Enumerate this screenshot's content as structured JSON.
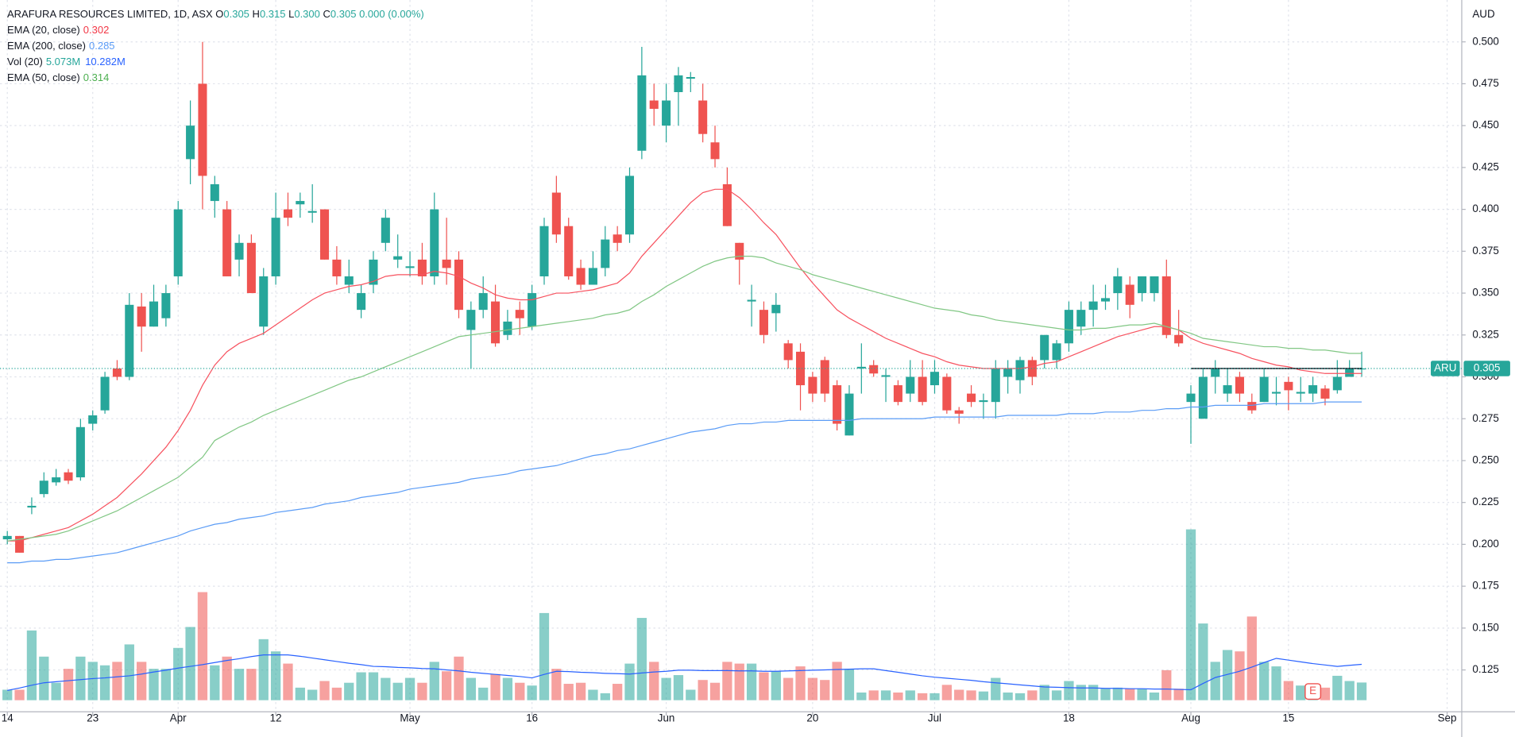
{
  "chart_data": {
    "type": "candlestick",
    "header": {
      "symbol": "ARAFURA RESOURCES LIMITED, 1D, ASX",
      "ohlc": [
        {
          "label": "O",
          "value": "0.305"
        },
        {
          "label": "H",
          "value": "0.315"
        },
        {
          "label": "L",
          "value": "0.300"
        },
        {
          "label": "C",
          "value": "0.305"
        }
      ],
      "change": "0.000 (0.00%)"
    },
    "currency": "AUD",
    "ticker": "ARU",
    "last_price": {
      "value": 0.305,
      "label": "0.305"
    },
    "up_color": "#26a69a",
    "down_color": "#ef5350",
    "xlim": [
      -0.6,
      119.2
    ],
    "xticks": [
      {
        "value": 0,
        "label": "14"
      },
      {
        "value": 7,
        "label": "23"
      },
      {
        "value": 14,
        "label": "Apr"
      },
      {
        "value": 22,
        "label": "12"
      },
      {
        "value": 33,
        "label": "May"
      },
      {
        "value": 43,
        "label": "16"
      },
      {
        "value": 54,
        "label": "Jun"
      },
      {
        "value": 66,
        "label": "20"
      },
      {
        "value": 76,
        "label": "Jul"
      },
      {
        "value": 87,
        "label": "18"
      },
      {
        "value": 97,
        "label": "Aug"
      },
      {
        "value": 105,
        "label": "15"
      },
      {
        "value": 118,
        "label": "Sep"
      }
    ],
    "ylim": [
      0.1,
      0.525
    ],
    "yticks": [
      {
        "value": 0.125,
        "label": "0.125"
      },
      {
        "value": 0.15,
        "label": "0.150"
      },
      {
        "value": 0.175,
        "label": "0.175"
      },
      {
        "value": 0.2,
        "label": "0.200"
      },
      {
        "value": 0.225,
        "label": "0.225"
      },
      {
        "value": 0.25,
        "label": "0.250"
      },
      {
        "value": 0.275,
        "label": "0.275"
      },
      {
        "value": 0.3,
        "label": "0.300"
      },
      {
        "value": 0.325,
        "label": "0.325"
      },
      {
        "value": 0.35,
        "label": "0.350"
      },
      {
        "value": 0.375,
        "label": "0.375"
      },
      {
        "value": 0.4,
        "label": "0.400"
      },
      {
        "value": 0.425,
        "label": "0.425"
      },
      {
        "value": 0.45,
        "label": "0.450"
      },
      {
        "value": 0.475,
        "label": "0.475"
      },
      {
        "value": 0.5,
        "label": "0.500"
      }
    ],
    "grid": true,
    "open": [
      0.203,
      0.205,
      0.222,
      0.23,
      0.237,
      0.243,
      0.24,
      0.272,
      0.28,
      0.305,
      0.3,
      0.342,
      0.33,
      0.335,
      0.36,
      0.43,
      0.475,
      0.405,
      0.4,
      0.37,
      0.38,
      0.33,
      0.36,
      0.4,
      0.403,
      0.398,
      0.4,
      0.37,
      0.355,
      0.34,
      0.355,
      0.38,
      0.37,
      0.365,
      0.37,
      0.36,
      0.37,
      0.37,
      0.328,
      0.34,
      0.345,
      0.325,
      0.34,
      0.33,
      0.36,
      0.41,
      0.39,
      0.365,
      0.355,
      0.365,
      0.385,
      0.385,
      0.435,
      0.465,
      0.45,
      0.47,
      0.478,
      0.465,
      0.44,
      0.415,
      0.38,
      0.345,
      0.34,
      0.338,
      0.32,
      0.315,
      0.3,
      0.31,
      0.295,
      0.265,
      0.305,
      0.307,
      0.3,
      0.295,
      0.29,
      0.3,
      0.295,
      0.3,
      0.28,
      0.29,
      0.285,
      0.285,
      0.3,
      0.298,
      0.31,
      0.31,
      0.31,
      0.32,
      0.33,
      0.34,
      0.345,
      0.35,
      0.355,
      0.35,
      0.35,
      0.36,
      0.325,
      0.285,
      0.275,
      0.3,
      0.29,
      0.3,
      0.285,
      0.285,
      0.29,
      0.297,
      0.29,
      0.29,
      0.293,
      0.292,
      0.3,
      0.305
    ],
    "high": [
      0.208,
      0.205,
      0.228,
      0.243,
      0.245,
      0.245,
      0.275,
      0.28,
      0.303,
      0.31,
      0.35,
      0.35,
      0.355,
      0.355,
      0.405,
      0.465,
      0.5,
      0.42,
      0.405,
      0.385,
      0.385,
      0.365,
      0.41,
      0.41,
      0.41,
      0.415,
      0.4,
      0.378,
      0.37,
      0.355,
      0.375,
      0.4,
      0.385,
      0.375,
      0.38,
      0.41,
      0.395,
      0.375,
      0.345,
      0.36,
      0.355,
      0.34,
      0.345,
      0.355,
      0.395,
      0.42,
      0.395,
      0.37,
      0.375,
      0.39,
      0.39,
      0.425,
      0.497,
      0.475,
      0.475,
      0.485,
      0.482,
      0.475,
      0.45,
      0.425,
      0.38,
      0.355,
      0.345,
      0.35,
      0.322,
      0.32,
      0.303,
      0.312,
      0.298,
      0.295,
      0.32,
      0.31,
      0.305,
      0.298,
      0.31,
      0.31,
      0.31,
      0.302,
      0.282,
      0.295,
      0.29,
      0.31,
      0.31,
      0.312,
      0.312,
      0.325,
      0.322,
      0.345,
      0.345,
      0.355,
      0.355,
      0.365,
      0.36,
      0.36,
      0.36,
      0.37,
      0.34,
      0.295,
      0.305,
      0.31,
      0.305,
      0.303,
      0.29,
      0.305,
      0.3,
      0.3,
      0.3,
      0.3,
      0.295,
      0.31,
      0.31,
      0.315
    ],
    "low": [
      0.2,
      0.195,
      0.218,
      0.228,
      0.235,
      0.236,
      0.238,
      0.268,
      0.278,
      0.298,
      0.298,
      0.315,
      0.33,
      0.33,
      0.355,
      0.415,
      0.4,
      0.395,
      0.36,
      0.36,
      0.35,
      0.325,
      0.355,
      0.39,
      0.395,
      0.392,
      0.37,
      0.355,
      0.35,
      0.335,
      0.35,
      0.375,
      0.365,
      0.36,
      0.355,
      0.355,
      0.355,
      0.335,
      0.305,
      0.335,
      0.318,
      0.322,
      0.325,
      0.328,
      0.355,
      0.38,
      0.358,
      0.352,
      0.355,
      0.36,
      0.375,
      0.38,
      0.43,
      0.45,
      0.44,
      0.45,
      0.47,
      0.44,
      0.425,
      0.39,
      0.355,
      0.33,
      0.32,
      0.327,
      0.305,
      0.28,
      0.285,
      0.285,
      0.268,
      0.265,
      0.29,
      0.3,
      0.285,
      0.283,
      0.285,
      0.283,
      0.29,
      0.278,
      0.272,
      0.282,
      0.275,
      0.275,
      0.29,
      0.29,
      0.295,
      0.305,
      0.305,
      0.315,
      0.325,
      0.33,
      0.34,
      0.34,
      0.335,
      0.345,
      0.345,
      0.323,
      0.318,
      0.26,
      0.275,
      0.29,
      0.285,
      0.285,
      0.278,
      0.285,
      0.283,
      0.28,
      0.285,
      0.285,
      0.283,
      0.29,
      0.3,
      0.3
    ],
    "close": [
      0.205,
      0.195,
      0.223,
      0.238,
      0.24,
      0.238,
      0.27,
      0.277,
      0.3,
      0.3,
      0.343,
      0.33,
      0.345,
      0.35,
      0.4,
      0.45,
      0.42,
      0.415,
      0.36,
      0.38,
      0.35,
      0.36,
      0.395,
      0.395,
      0.405,
      0.399,
      0.37,
      0.36,
      0.36,
      0.35,
      0.37,
      0.395,
      0.372,
      0.366,
      0.36,
      0.4,
      0.365,
      0.34,
      0.34,
      0.35,
      0.32,
      0.333,
      0.335,
      0.35,
      0.39,
      0.385,
      0.36,
      0.355,
      0.365,
      0.382,
      0.38,
      0.42,
      0.48,
      0.46,
      0.465,
      0.48,
      0.479,
      0.445,
      0.43,
      0.39,
      0.37,
      0.346,
      0.325,
      0.343,
      0.31,
      0.295,
      0.29,
      0.29,
      0.272,
      0.29,
      0.306,
      0.302,
      0.301,
      0.285,
      0.3,
      0.285,
      0.303,
      0.28,
      0.278,
      0.285,
      0.286,
      0.305,
      0.305,
      0.31,
      0.3,
      0.325,
      0.32,
      0.34,
      0.34,
      0.345,
      0.347,
      0.36,
      0.343,
      0.36,
      0.36,
      0.325,
      0.32,
      0.29,
      0.3,
      0.305,
      0.295,
      0.29,
      0.28,
      0.3,
      0.291,
      0.292,
      0.291,
      0.295,
      0.287,
      0.3,
      0.305,
      0.305
    ],
    "series": [
      {
        "name": "EMA (20, close)",
        "label": "0.302",
        "color": "#f7525f",
        "values": [
          0.202,
          0.202,
          0.204,
          0.206,
          0.208,
          0.21,
          0.214,
          0.218,
          0.223,
          0.228,
          0.235,
          0.242,
          0.25,
          0.258,
          0.268,
          0.28,
          0.295,
          0.307,
          0.315,
          0.32,
          0.323,
          0.326,
          0.331,
          0.336,
          0.341,
          0.346,
          0.35,
          0.352,
          0.354,
          0.355,
          0.357,
          0.36,
          0.361,
          0.361,
          0.361,
          0.363,
          0.362,
          0.36,
          0.356,
          0.353,
          0.349,
          0.347,
          0.346,
          0.346,
          0.348,
          0.35,
          0.35,
          0.351,
          0.352,
          0.354,
          0.356,
          0.362,
          0.372,
          0.38,
          0.388,
          0.396,
          0.404,
          0.41,
          0.412,
          0.412,
          0.407,
          0.4,
          0.392,
          0.385,
          0.375,
          0.365,
          0.356,
          0.348,
          0.34,
          0.335,
          0.331,
          0.327,
          0.323,
          0.32,
          0.317,
          0.314,
          0.312,
          0.309,
          0.307,
          0.306,
          0.305,
          0.305,
          0.305,
          0.305,
          0.306,
          0.308,
          0.309,
          0.312,
          0.315,
          0.318,
          0.321,
          0.324,
          0.326,
          0.328,
          0.33,
          0.33,
          0.328,
          0.323,
          0.32,
          0.318,
          0.316,
          0.314,
          0.311,
          0.309,
          0.307,
          0.306,
          0.304,
          0.303,
          0.302,
          0.302,
          0.302,
          0.302
        ]
      },
      {
        "name": "EMA (200, close)",
        "label": "0.285",
        "color": "#5b9cf6",
        "values": [
          0.189,
          0.189,
          0.19,
          0.19,
          0.191,
          0.191,
          0.192,
          0.193,
          0.194,
          0.195,
          0.197,
          0.199,
          0.201,
          0.203,
          0.205,
          0.208,
          0.21,
          0.212,
          0.213,
          0.215,
          0.216,
          0.217,
          0.219,
          0.22,
          0.221,
          0.222,
          0.224,
          0.225,
          0.226,
          0.228,
          0.229,
          0.23,
          0.231,
          0.233,
          0.234,
          0.235,
          0.236,
          0.237,
          0.239,
          0.24,
          0.241,
          0.242,
          0.244,
          0.245,
          0.246,
          0.247,
          0.249,
          0.251,
          0.253,
          0.254,
          0.256,
          0.257,
          0.259,
          0.261,
          0.263,
          0.265,
          0.267,
          0.268,
          0.269,
          0.271,
          0.272,
          0.272,
          0.273,
          0.273,
          0.274,
          0.274,
          0.274,
          0.274,
          0.274,
          0.274,
          0.275,
          0.275,
          0.275,
          0.275,
          0.275,
          0.275,
          0.276,
          0.276,
          0.276,
          0.276,
          0.276,
          0.276,
          0.277,
          0.277,
          0.277,
          0.277,
          0.277,
          0.278,
          0.278,
          0.278,
          0.279,
          0.279,
          0.279,
          0.28,
          0.28,
          0.281,
          0.281,
          0.282,
          0.282,
          0.283,
          0.283,
          0.283,
          0.283,
          0.284,
          0.284,
          0.284,
          0.284,
          0.284,
          0.285,
          0.285,
          0.285,
          0.285
        ]
      },
      {
        "name": "EMA (50, close)",
        "label": "0.314",
        "color": "#81c784",
        "values": [
          0.202,
          0.203,
          0.204,
          0.205,
          0.206,
          0.208,
          0.211,
          0.214,
          0.217,
          0.22,
          0.224,
          0.228,
          0.232,
          0.236,
          0.24,
          0.246,
          0.252,
          0.262,
          0.266,
          0.27,
          0.273,
          0.277,
          0.28,
          0.283,
          0.286,
          0.289,
          0.292,
          0.295,
          0.298,
          0.3,
          0.303,
          0.306,
          0.309,
          0.312,
          0.315,
          0.318,
          0.321,
          0.324,
          0.325,
          0.326,
          0.327,
          0.328,
          0.329,
          0.33,
          0.331,
          0.332,
          0.333,
          0.334,
          0.335,
          0.337,
          0.338,
          0.34,
          0.345,
          0.349,
          0.354,
          0.358,
          0.362,
          0.366,
          0.369,
          0.371,
          0.372,
          0.372,
          0.371,
          0.368,
          0.366,
          0.364,
          0.361,
          0.359,
          0.357,
          0.355,
          0.353,
          0.351,
          0.349,
          0.347,
          0.345,
          0.343,
          0.341,
          0.34,
          0.339,
          0.337,
          0.336,
          0.334,
          0.333,
          0.332,
          0.331,
          0.33,
          0.329,
          0.328,
          0.328,
          0.329,
          0.329,
          0.33,
          0.331,
          0.331,
          0.332,
          0.33,
          0.328,
          0.326,
          0.323,
          0.322,
          0.321,
          0.32,
          0.319,
          0.318,
          0.318,
          0.317,
          0.317,
          0.316,
          0.316,
          0.315,
          0.314,
          0.314
        ]
      }
    ],
    "volume": {
      "name": "Vol (20)",
      "labels": [
        "5.073M",
        "10.282M"
      ],
      "ylim": [
        0,
        60
      ],
      "ma_color": "#2962ff",
      "values": [
        3,
        3,
        20,
        12.5,
        5,
        9,
        12.5,
        11,
        10,
        11,
        16,
        11,
        9,
        9,
        15,
        21,
        31,
        10,
        12.5,
        9,
        9,
        17.5,
        14,
        10.5,
        3.6,
        3,
        5.5,
        3.6,
        5,
        8,
        8,
        6.4,
        5,
        6.4,
        5,
        11,
        8.3,
        12.5,
        6.4,
        3.6,
        7.5,
        6.4,
        5,
        4.2,
        25,
        9,
        4.7,
        5,
        3,
        2,
        4.7,
        10.5,
        23.6,
        11,
        6.4,
        7.2,
        3,
        5.8,
        5,
        11,
        10.5,
        10.5,
        8,
        8.3,
        6.4,
        9.7,
        6.4,
        5.8,
        11,
        9,
        2.2,
        2.8,
        2.8,
        2.2,
        2.8,
        2,
        2,
        4.4,
        3,
        2.8,
        2.5,
        6.4,
        2.2,
        2,
        2.8,
        4.4,
        2.8,
        5.5,
        4.4,
        4.4,
        3.3,
        3.6,
        3.3,
        3.3,
        2.2,
        8.6,
        3.3,
        49,
        22,
        11,
        14.4,
        14,
        24,
        11,
        9.7,
        5.5,
        4.2,
        3,
        3.6,
        7,
        5.5,
        5.073
      ],
      "ma_values": [
        2.8,
        3.5,
        4.3,
        5,
        5.3,
        5.6,
        5.9,
        6.2,
        6.4,
        6.7,
        7,
        7.5,
        8.1,
        8.6,
        9.2,
        9.7,
        10.2,
        10.8,
        11.4,
        11.9,
        12.5,
        13,
        13,
        13,
        12.6,
        12.1,
        11.6,
        11.1,
        10.6,
        10.2,
        9.7,
        9.6,
        9.4,
        9.3,
        9.1,
        9,
        8.7,
        8.4,
        8,
        7.7,
        7.4,
        7.1,
        6.8,
        6.4,
        7.4,
        8.3,
        8.2,
        8,
        7.9,
        7.7,
        7.6,
        7.5,
        7.8,
        8.1,
        8.3,
        8.6,
        8.6,
        8.5,
        8.5,
        8.5,
        8.4,
        8.4,
        8.3,
        8.3,
        8.4,
        8.5,
        8.6,
        8.7,
        8.8,
        8.9,
        9,
        9,
        8.5,
        8,
        7.5,
        7,
        6.6,
        6.3,
        6,
        5.7,
        5.3,
        5,
        4.7,
        4.4,
        4.1,
        3.8,
        3.7,
        3.6,
        3.5,
        3.5,
        3.4,
        3.4,
        3.3,
        3.3,
        3.2,
        3.2,
        3.1,
        3,
        4.8,
        6.5,
        7.4,
        8.3,
        9.5,
        10.8,
        12,
        11.5,
        11,
        10.5,
        10.1,
        9.7,
        10,
        10.282
      ]
    },
    "hline": {
      "value": 0.305,
      "x": [
        97,
        111
      ]
    },
    "earnings": {
      "label": "E",
      "x": 107
    }
  }
}
